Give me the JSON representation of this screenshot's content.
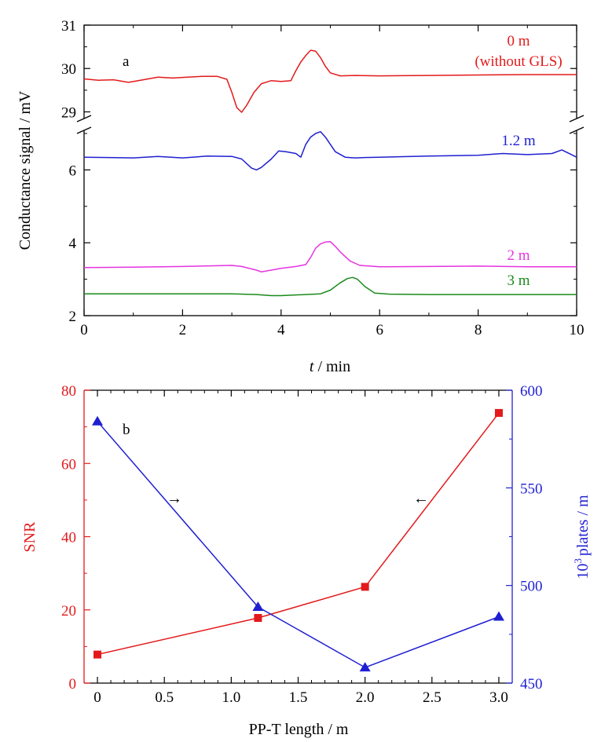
{
  "chart_data": [
    {
      "type": "line",
      "panel_label": "a",
      "xlabel_italic": "t",
      "xlabel_rest": " / min",
      "ylabel": "Conductance signal / mV",
      "xlim": [
        0,
        10
      ],
      "x_ticks": [
        "0",
        "2",
        "4",
        "6",
        "8",
        "10"
      ],
      "y_ticks_lower": [
        "2",
        "4",
        "6"
      ],
      "y_ticks_upper": [
        "29",
        "30",
        "31"
      ],
      "axis_break": {
        "lower_range": [
          2,
          7
        ],
        "upper_range": [
          28.9,
          31
        ]
      },
      "series": [
        {
          "name": "0 m",
          "name_line2": "(without GLS)",
          "color": "#e31a1c",
          "segment": "upper",
          "x": [
            0,
            0.3,
            0.6,
            0.9,
            1.2,
            1.5,
            1.8,
            2.1,
            2.4,
            2.7,
            2.9,
            3.0,
            3.1,
            3.2,
            3.3,
            3.45,
            3.6,
            3.8,
            4.0,
            4.2,
            4.3,
            4.4,
            4.5,
            4.6,
            4.7,
            4.8,
            4.9,
            5.0,
            5.2,
            5.5,
            6.0,
            7.0,
            8.0,
            9.0,
            10.0
          ],
          "values": [
            29.76,
            29.73,
            29.74,
            29.68,
            29.74,
            29.8,
            29.78,
            29.8,
            29.82,
            29.82,
            29.75,
            29.45,
            29.1,
            28.99,
            29.15,
            29.45,
            29.65,
            29.72,
            29.7,
            29.72,
            29.95,
            30.15,
            30.3,
            30.42,
            30.4,
            30.25,
            30.05,
            29.9,
            29.83,
            29.84,
            29.83,
            29.84,
            29.85,
            29.86,
            29.86
          ]
        },
        {
          "name": "1.2 m",
          "color": "#1f1fd2",
          "segment": "lower",
          "x": [
            0,
            0.5,
            1.0,
            1.5,
            2.0,
            2.5,
            3.0,
            3.2,
            3.4,
            3.5,
            3.6,
            3.8,
            3.95,
            4.1,
            4.3,
            4.4,
            4.5,
            4.6,
            4.7,
            4.8,
            4.9,
            5.0,
            5.1,
            5.3,
            5.5,
            5.7,
            6.0,
            7.0,
            8.0,
            8.5,
            9.0,
            9.5,
            9.7,
            10.0
          ],
          "values": [
            6.35,
            6.34,
            6.33,
            6.37,
            6.33,
            6.38,
            6.37,
            6.3,
            6.05,
            6.0,
            6.07,
            6.3,
            6.52,
            6.5,
            6.45,
            6.35,
            6.7,
            6.9,
            7.0,
            7.05,
            6.9,
            6.7,
            6.5,
            6.35,
            6.33,
            6.34,
            6.35,
            6.38,
            6.4,
            6.45,
            6.42,
            6.45,
            6.55,
            6.35
          ]
        },
        {
          "name": "2 m",
          "color": "#e633e0",
          "segment": "lower",
          "x": [
            0,
            1.0,
            2.0,
            3.0,
            3.2,
            3.5,
            3.6,
            3.8,
            4.0,
            4.3,
            4.5,
            4.6,
            4.7,
            4.8,
            4.9,
            5.0,
            5.1,
            5.2,
            5.4,
            5.6,
            6.0,
            7.0,
            8.0,
            9.0,
            10.0
          ],
          "values": [
            3.32,
            3.33,
            3.35,
            3.38,
            3.35,
            3.25,
            3.2,
            3.25,
            3.3,
            3.35,
            3.4,
            3.6,
            3.85,
            3.97,
            4.02,
            4.03,
            3.9,
            3.75,
            3.5,
            3.38,
            3.34,
            3.35,
            3.36,
            3.34,
            3.34
          ]
        },
        {
          "name": "3 m",
          "color": "#1a8a1a",
          "segment": "lower",
          "x": [
            0,
            1.0,
            2.0,
            3.0,
            3.5,
            3.8,
            4.0,
            4.5,
            4.8,
            5.0,
            5.2,
            5.35,
            5.45,
            5.55,
            5.7,
            5.9,
            6.2,
            7.0,
            8.0,
            9.0,
            10.0
          ],
          "values": [
            2.6,
            2.6,
            2.6,
            2.6,
            2.58,
            2.55,
            2.55,
            2.58,
            2.6,
            2.7,
            2.9,
            3.02,
            3.05,
            3.0,
            2.8,
            2.62,
            2.59,
            2.58,
            2.58,
            2.58,
            2.58
          ]
        }
      ]
    },
    {
      "type": "line",
      "panel_label": "b",
      "xlabel": "PP-T length / m",
      "xlim": [
        -0.1,
        3.1
      ],
      "x_ticks": [
        "0",
        "0.5",
        "1.0",
        "1.5",
        "2.0",
        "2.5",
        "3.0"
      ],
      "ylabel_left": "SNR",
      "ylim_left": [
        0,
        80
      ],
      "y_ticks_left": [
        "0",
        "20",
        "40",
        "60",
        "80"
      ],
      "ylabel_right_base": "10",
      "ylabel_right_sup": "3",
      "ylabel_right_rest": "plates / m",
      "ylim_right": [
        450,
        600
      ],
      "y_ticks_right": [
        "450",
        "500",
        "550",
        "600"
      ],
      "left_arrow": "←",
      "right_arrow": "→",
      "series": [
        {
          "name": "SNR",
          "axis": "left",
          "marker": "square",
          "color": "#e31a1c",
          "x": [
            0,
            1.2,
            2.0,
            3.0
          ],
          "values": [
            7.8,
            17.8,
            26.3,
            73.8
          ]
        },
        {
          "name": "10^3 plates / m",
          "axis": "right",
          "marker": "triangle",
          "color": "#1f1fd2",
          "x": [
            0,
            1.2,
            2.0,
            3.0
          ],
          "values": [
            584,
            489,
            458,
            484
          ]
        }
      ]
    }
  ]
}
